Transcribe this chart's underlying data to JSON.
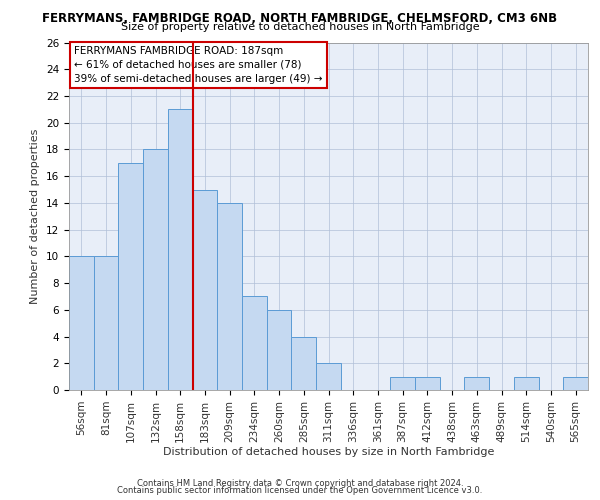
{
  "title": "FERRYMANS, FAMBRIDGE ROAD, NORTH FAMBRIDGE, CHELMSFORD, CM3 6NB",
  "subtitle": "Size of property relative to detached houses in North Fambridge",
  "xlabel": "Distribution of detached houses by size in North Fambridge",
  "ylabel": "Number of detached properties",
  "categories": [
    "56sqm",
    "81sqm",
    "107sqm",
    "132sqm",
    "158sqm",
    "183sqm",
    "209sqm",
    "234sqm",
    "260sqm",
    "285sqm",
    "311sqm",
    "336sqm",
    "361sqm",
    "387sqm",
    "412sqm",
    "438sqm",
    "463sqm",
    "489sqm",
    "514sqm",
    "540sqm",
    "565sqm"
  ],
  "values": [
    10,
    10,
    17,
    18,
    21,
    15,
    14,
    7,
    6,
    4,
    2,
    0,
    0,
    1,
    1,
    0,
    1,
    0,
    1,
    0,
    1
  ],
  "bar_color": "#c5d9f1",
  "bar_edge_color": "#5b9bd5",
  "red_line_x": 4.5,
  "ylim": [
    0,
    26
  ],
  "yticks": [
    0,
    2,
    4,
    6,
    8,
    10,
    12,
    14,
    16,
    18,
    20,
    22,
    24,
    26
  ],
  "annotation_text": "FERRYMANS FAMBRIDGE ROAD: 187sqm\n← 61% of detached houses are smaller (78)\n39% of semi-detached houses are larger (49) →",
  "annotation_box_color": "#ffffff",
  "annotation_box_edge": "#cc0000",
  "background_color": "#e8eef8",
  "footer_line1": "Contains HM Land Registry data © Crown copyright and database right 2024.",
  "footer_line2": "Contains public sector information licensed under the Open Government Licence v3.0.",
  "title_fontsize": 8.5,
  "subtitle_fontsize": 8,
  "ylabel_fontsize": 8,
  "xlabel_fontsize": 8,
  "tick_fontsize": 7.5,
  "annotation_fontsize": 7.5,
  "footer_fontsize": 6
}
